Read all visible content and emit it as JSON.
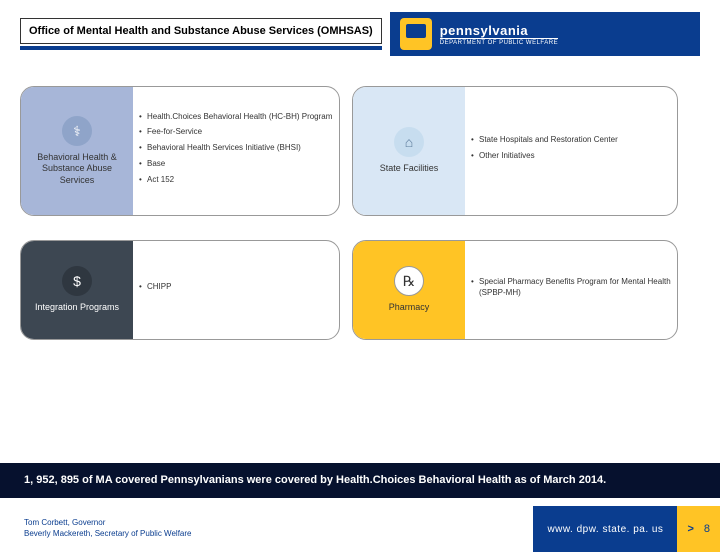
{
  "header": {
    "title": "Office of Mental Health and Substance Abuse Services (OMHSAS)",
    "logo_state": "pennsylvania",
    "logo_dept": "DEPARTMENT OF PUBLIC WELFARE",
    "title_underline_color": "#0a3d8f",
    "logo_bg": "#0a3d8f",
    "keystone_color": "#ffc425"
  },
  "cards": {
    "behavioral": {
      "label": "Behavioral Health & Substance Abuse Services",
      "accent": "#a7b6d8",
      "icon_bg": "#8fa4c9",
      "icon_glyph": "⚕",
      "bullets": [
        "Health.Choices Behavioral Health (HC-BH) Program",
        "Fee-for-Service",
        "Behavioral Health Services Initiative (BHSI)",
        "Base",
        "Act 152"
      ]
    },
    "state": {
      "label": "State Facilities",
      "accent": "#d9e7f5",
      "icon_bg": "#c7ddef",
      "icon_glyph": "⌂",
      "bullets": [
        "State Hospitals and Restoration Center",
        "Other Initiatives"
      ]
    },
    "integration": {
      "label": "Integration Programs",
      "accent": "#3d4752",
      "icon_bg": "#2f3740",
      "icon_glyph": "$",
      "bullets": [
        "CHIPP"
      ]
    },
    "pharmacy": {
      "label": "Pharmacy",
      "accent": "#ffc425",
      "icon_bg": "#ffc425",
      "icon_glyph": "℞",
      "bullets": [
        "Special Pharmacy Benefits Program for Mental Health (SPBP-MH)"
      ]
    }
  },
  "stat": "1, 952, 895 of MA covered Pennsylvanians were covered by Health.Choices Behavioral Health as of March 2014.",
  "footer": {
    "governor": "Tom Corbett, Governor",
    "secretary": "Beverly Mackereth, Secretary of Public Welfare",
    "url": "www. dpw. state. pa. us",
    "chevron": ">",
    "page": "8",
    "url_bg": "#0a3d8f",
    "page_bg": "#ffc425"
  },
  "colors": {
    "stat_bg": "#06112e",
    "text": "#333333"
  }
}
